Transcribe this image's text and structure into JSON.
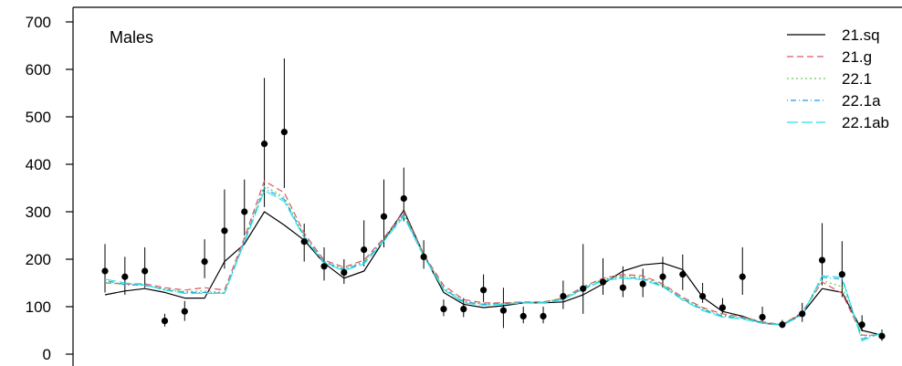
{
  "chart_data": {
    "type": "line",
    "title": "",
    "panel_label": "Males",
    "xlabel": "",
    "ylabel": "",
    "ylim": [
      0,
      700
    ],
    "y_ticks": [
      0,
      100,
      200,
      300,
      400,
      500,
      600,
      700
    ],
    "grid": false,
    "legend_position": "top-right",
    "observations": {
      "x": [
        1,
        2,
        3,
        4,
        5,
        6,
        7,
        8,
        9,
        10,
        11,
        12,
        13,
        14,
        15,
        16,
        17,
        18,
        19,
        20,
        21,
        22,
        23,
        24,
        25,
        26,
        27,
        28,
        29,
        30,
        31,
        32,
        33,
        34,
        35,
        36,
        37,
        38,
        39,
        40
      ],
      "values": [
        175,
        163,
        175,
        70,
        90,
        195,
        260,
        300,
        443,
        468,
        237,
        185,
        172,
        220,
        290,
        328,
        205,
        95,
        95,
        135,
        92,
        80,
        80,
        122,
        138,
        152,
        140,
        148,
        163,
        168,
        122,
        98,
        163,
        78,
        62,
        85,
        198,
        168,
        62,
        38
      ],
      "lower": [
        130,
        125,
        140,
        58,
        70,
        160,
        180,
        250,
        310,
        350,
        195,
        155,
        148,
        185,
        225,
        280,
        180,
        80,
        78,
        110,
        55,
        65,
        65,
        95,
        85,
        125,
        120,
        120,
        140,
        135,
        108,
        85,
        125,
        68,
        55,
        68,
        145,
        120,
        48,
        28
      ],
      "upper": [
        232,
        205,
        225,
        85,
        112,
        242,
        347,
        368,
        582,
        623,
        275,
        225,
        200,
        282,
        368,
        393,
        240,
        115,
        118,
        168,
        140,
        100,
        100,
        155,
        232,
        202,
        185,
        180,
        205,
        210,
        150,
        118,
        225,
        100,
        72,
        108,
        276,
        238,
        82,
        52
      ]
    },
    "series": [
      {
        "name": "21.sq",
        "color": "#000000",
        "dash": "solid",
        "values": [
          125,
          133,
          138,
          130,
          118,
          118,
          195,
          232,
          300,
          272,
          240,
          192,
          160,
          175,
          240,
          303,
          210,
          130,
          105,
          98,
          102,
          108,
          108,
          110,
          125,
          148,
          175,
          188,
          192,
          178,
          120,
          90,
          80,
          65,
          62,
          85,
          138,
          130,
          50,
          40
        ]
      },
      {
        "name": "21.g",
        "color": "#df536b",
        "dash": "dashed",
        "values": [
          150,
          148,
          148,
          140,
          135,
          140,
          135,
          245,
          365,
          340,
          255,
          198,
          183,
          198,
          245,
          300,
          210,
          145,
          115,
          108,
          108,
          110,
          110,
          118,
          142,
          160,
          168,
          165,
          148,
          120,
          98,
          85,
          78,
          68,
          62,
          88,
          152,
          128,
          40,
          40
        ]
      },
      {
        "name": "22.1",
        "color": "#61d04f",
        "dash": "dotted",
        "values": [
          152,
          146,
          145,
          138,
          132,
          133,
          130,
          240,
          355,
          330,
          250,
          195,
          180,
          195,
          242,
          296,
          210,
          140,
          112,
          106,
          107,
          110,
          110,
          118,
          140,
          158,
          165,
          162,
          146,
          118,
          96,
          82,
          78,
          67,
          62,
          85,
          155,
          142,
          38,
          42
        ]
      },
      {
        "name": "22.1a",
        "color": "#2297e6",
        "dash": "dashdot",
        "values": [
          155,
          147,
          145,
          136,
          130,
          130,
          128,
          238,
          350,
          326,
          248,
          194,
          178,
          193,
          240,
          294,
          208,
          138,
          110,
          105,
          106,
          109,
          109,
          116,
          138,
          156,
          162,
          159,
          144,
          116,
          94,
          80,
          76,
          66,
          62,
          84,
          162,
          158,
          32,
          45
        ]
      },
      {
        "name": "22.1ab",
        "color": "#28e2e5",
        "dash": "longdash",
        "values": [
          158,
          150,
          146,
          135,
          128,
          128,
          128,
          235,
          345,
          322,
          245,
          192,
          176,
          190,
          238,
          290,
          206,
          136,
          108,
          103,
          105,
          108,
          108,
          115,
          136,
          155,
          160,
          157,
          142,
          114,
          92,
          78,
          74,
          65,
          61,
          82,
          165,
          162,
          28,
          45
        ]
      }
    ]
  }
}
